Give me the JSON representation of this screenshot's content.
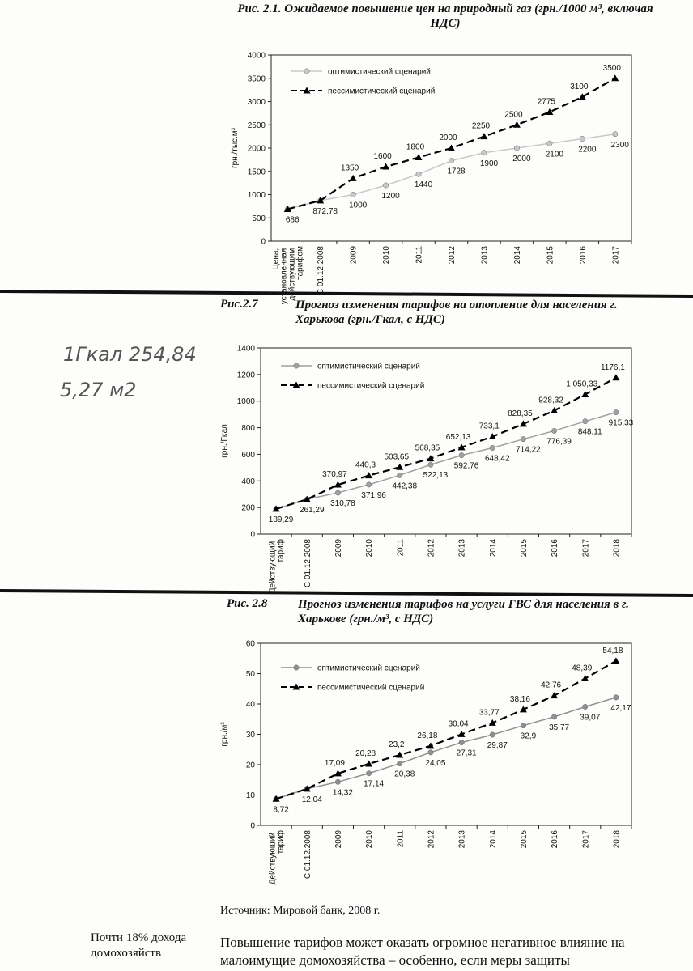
{
  "chart_data": [
    {
      "type": "line",
      "figure": "Рис. 2.1.",
      "title": "Ожидаемое повышение цен на природный газ (грн./1000 м³, включая НДС)",
      "y_label": "грн./тыс.м³",
      "categories": [
        "Цена, установленная действующим тарифом",
        "С 01.12.2008",
        "2009",
        "2010",
        "2011",
        "2012",
        "2013",
        "2014",
        "2015",
        "2016",
        "2017"
      ],
      "series": [
        {
          "name": "оптимистический сценарий",
          "color": "#c8c8c8",
          "values": [
            686,
            872.78,
            1000,
            1200,
            1440,
            1728,
            1900,
            2000,
            2100,
            2200,
            2300
          ],
          "value_labels": [
            "686",
            "872,78",
            "1000",
            "1200",
            "1440",
            "1728",
            "1900",
            "2000",
            "2100",
            "2200",
            "2300"
          ]
        },
        {
          "name": "пессимистический сценарий",
          "color": "#000000",
          "values": [
            686,
            872.78,
            1350,
            1600,
            1800,
            2000,
            2250,
            2500,
            2775,
            3100,
            3500
          ],
          "value_labels": [
            null,
            null,
            "1350",
            "1600",
            "1800",
            "2000",
            "2250",
            "2500",
            "2775",
            "3100",
            "3500"
          ]
        }
      ],
      "ylim": [
        0,
        4000
      ],
      "yticks": [
        0,
        500,
        1000,
        1500,
        2000,
        2500,
        3000,
        3500,
        4000
      ]
    },
    {
      "type": "line",
      "figure": "Рис.2.7",
      "title": "Прогноз изменения тарифов на отопление для населения г. Харькова (грн./Гкал, с НДС)",
      "y_label": "грн./Гкал",
      "categories": [
        "Действующий тариф",
        "С 01.12.2008",
        "2009",
        "2010",
        "2011",
        "2012",
        "2013",
        "2014",
        "2015",
        "2016",
        "2017",
        "2018"
      ],
      "series": [
        {
          "name": "оптимистический сценарий",
          "color": "#a0a0a0",
          "values": [
            189.29,
            261.29,
            310.78,
            371.96,
            442.38,
            522.13,
            592.76,
            648.42,
            714.22,
            776.39,
            848.11,
            915.33
          ],
          "value_labels": [
            "189,29",
            "261,29",
            "310,78",
            "371,96",
            "442,38",
            "522,13",
            "592,76",
            "648,42",
            "714,22",
            "776,39",
            "848,11",
            "915,33"
          ]
        },
        {
          "name": "пессимистический сценарий",
          "color": "#000000",
          "values": [
            189.29,
            261.29,
            370.97,
            440.3,
            503.65,
            568.35,
            652.13,
            733.1,
            828.35,
            928.32,
            1050.33,
            1176.1
          ],
          "value_labels": [
            null,
            null,
            "370,97",
            "440,3",
            "503,65",
            "568,35",
            "652,13",
            "733,1",
            "828,35",
            "928,32",
            "1 050,33",
            "1176,1"
          ]
        }
      ],
      "ylim": [
        0,
        1400
      ],
      "yticks": [
        0,
        200,
        400,
        600,
        800,
        1000,
        1200,
        1400
      ]
    },
    {
      "type": "line",
      "figure": "Рис. 2.8",
      "title": "Прогноз изменения тарифов на услуги ГВС для населения в г. Харькове (грн./м³, с НДС)",
      "y_label": "грн./м³",
      "categories": [
        "Действующий тариф",
        "С 01.12.2008",
        "2009",
        "2010",
        "2011",
        "2012",
        "2013",
        "2014",
        "2015",
        "2016",
        "2017",
        "2018"
      ],
      "series": [
        {
          "name": "оптимистический сценарий",
          "color": "#909090",
          "values": [
            8.72,
            12.04,
            14.32,
            17.14,
            20.38,
            24.05,
            27.31,
            29.87,
            32.9,
            35.77,
            39.07,
            42.17
          ],
          "value_labels": [
            "8,72",
            "12,04",
            "14,32",
            "17,14",
            "20,38",
            "24,05",
            "27,31",
            "29,87",
            "32,9",
            "35,77",
            "39,07",
            "42,17"
          ]
        },
        {
          "name": "пессимистический сценарий",
          "color": "#000000",
          "values": [
            8.72,
            12.04,
            17.09,
            20.28,
            23.2,
            26.18,
            30.04,
            33.77,
            38.16,
            42.76,
            48.39,
            54.18
          ],
          "value_labels": [
            null,
            null,
            "17,09",
            "20,28",
            "23,2",
            "26,18",
            "30,04",
            "33,77",
            "38,16",
            "42,76",
            "48,39",
            "54,18"
          ]
        }
      ],
      "ylim": [
        0,
        60
      ],
      "yticks": [
        0,
        10,
        20,
        30,
        40,
        50,
        60
      ]
    }
  ],
  "notes": [
    "1Гкал 254,84",
    "5,27 м2"
  ],
  "source": "Источник: Мировой банк, 2008 г.",
  "sidebar": "Почти 18% дохода домохозяйств",
  "body": "Повышение тарифов может оказать огромное негативное влияние на малоимущие домохозяйства – особенно, если меры защиты"
}
